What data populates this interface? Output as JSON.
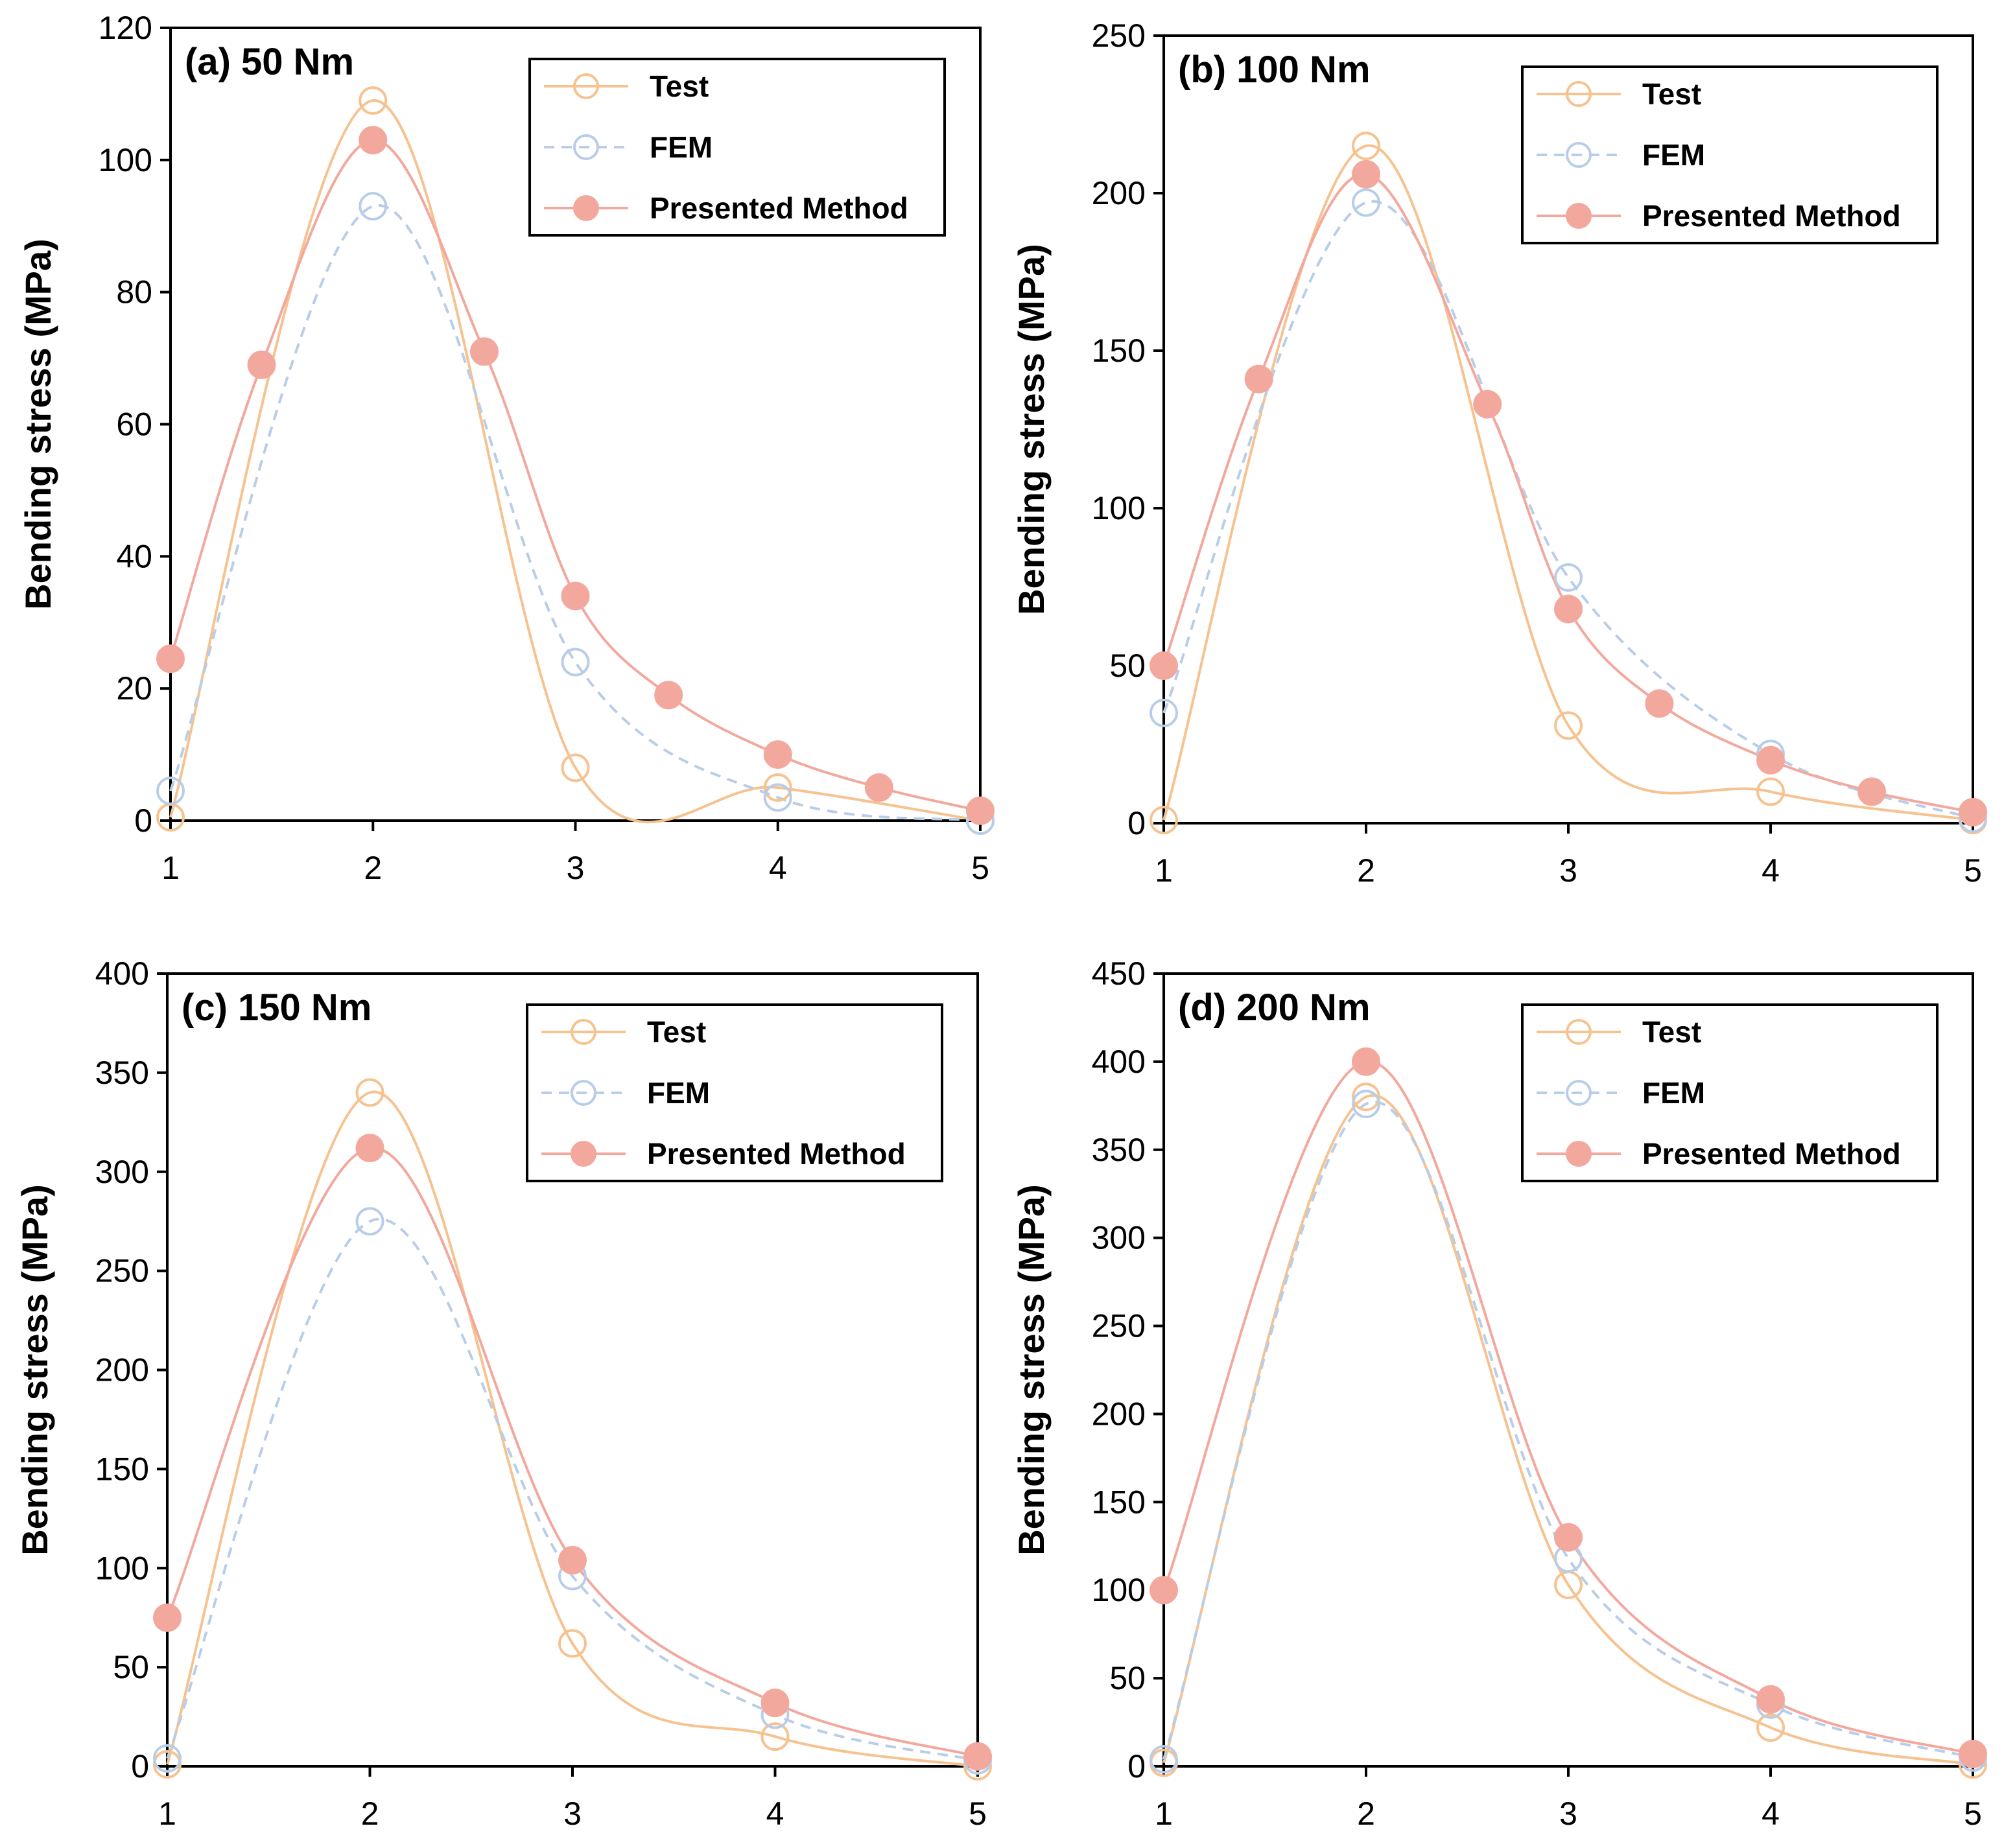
{
  "chart_data": [
    {
      "type": "line",
      "title": "(a) 50 Nm",
      "xlabel": "",
      "ylabel": "Bending stress (MPa)",
      "xlim": [
        1,
        5
      ],
      "ylim": [
        0,
        120
      ],
      "xticks": [
        1,
        2,
        3,
        4,
        5
      ],
      "yticks": [
        0,
        20,
        40,
        60,
        80,
        100,
        120
      ],
      "legend": "top-right",
      "grid": false,
      "series": [
        {
          "name": "Test",
          "color": "#f6c28f",
          "style": "solid",
          "marker": "open-circle",
          "x": [
            1,
            2,
            3,
            4,
            5
          ],
          "y": [
            0.5,
            109,
            8,
            5,
            0
          ]
        },
        {
          "name": "FEM",
          "color": "#b8cde8",
          "style": "dashed",
          "marker": "open-circle",
          "x": [
            1,
            2,
            3,
            4,
            5
          ],
          "y": [
            4.5,
            93,
            24,
            3.5,
            0
          ]
        },
        {
          "name": "Presented Method",
          "color": "#f3a89d",
          "style": "solid",
          "marker": "filled-circle",
          "x": [
            1,
            1.45,
            2,
            2.55,
            3,
            3.46,
            4,
            4.5,
            5
          ],
          "y": [
            24.5,
            69,
            103,
            71,
            34,
            19,
            10,
            5,
            1.5
          ]
        }
      ]
    },
    {
      "type": "line",
      "title": "(b) 100 Nm",
      "xlabel": "",
      "ylabel": "Bending stress (MPa)",
      "xlim": [
        1,
        5
      ],
      "ylim": [
        0,
        250
      ],
      "xticks": [
        1,
        2,
        3,
        4,
        5
      ],
      "yticks": [
        0,
        50,
        100,
        150,
        200,
        250
      ],
      "legend": "top-right",
      "grid": false,
      "series": [
        {
          "name": "Test",
          "color": "#f6c28f",
          "style": "solid",
          "marker": "open-circle",
          "x": [
            1,
            2,
            3,
            4,
            5
          ],
          "y": [
            1,
            215,
            31,
            10,
            1
          ]
        },
        {
          "name": "FEM",
          "color": "#b8cde8",
          "style": "dashed",
          "marker": "open-circle",
          "x": [
            1,
            2,
            3,
            4,
            5
          ],
          "y": [
            35,
            197,
            78,
            22,
            1.5
          ]
        },
        {
          "name": "Presented Method",
          "color": "#f3a89d",
          "style": "solid",
          "marker": "filled-circle",
          "x": [
            1,
            1.47,
            2,
            2.6,
            3,
            3.45,
            4,
            4.5,
            5
          ],
          "y": [
            50,
            141,
            206,
            133,
            68,
            38,
            20,
            10,
            3.5
          ]
        }
      ]
    },
    {
      "type": "line",
      "title": "(c) 150 Nm",
      "xlabel": "",
      "ylabel": "Bending stress (MPa)",
      "xlim": [
        1,
        5
      ],
      "ylim": [
        0,
        400
      ],
      "xticks": [
        1,
        2,
        3,
        4,
        5
      ],
      "yticks": [
        0,
        50,
        100,
        150,
        200,
        250,
        300,
        350,
        400
      ],
      "legend": "top-right",
      "grid": false,
      "series": [
        {
          "name": "Test",
          "color": "#f6c28f",
          "style": "solid",
          "marker": "open-circle",
          "x": [
            1,
            2,
            3,
            4,
            5
          ],
          "y": [
            1,
            340,
            62,
            15,
            0
          ]
        },
        {
          "name": "FEM",
          "color": "#b8cde8",
          "style": "dashed",
          "marker": "open-circle",
          "x": [
            1,
            2,
            3,
            4,
            5
          ],
          "y": [
            4,
            275,
            96,
            26,
            3
          ]
        },
        {
          "name": "Presented Method",
          "color": "#f3a89d",
          "style": "solid",
          "marker": "filled-circle",
          "x": [
            1,
            2,
            3,
            4,
            5
          ],
          "y": [
            75,
            312,
            104,
            32,
            5
          ]
        }
      ]
    },
    {
      "type": "line",
      "title": "(d) 200 Nm",
      "xlabel": "",
      "ylabel": "Bending stress (MPa)",
      "xlim": [
        1,
        5
      ],
      "ylim": [
        0,
        450
      ],
      "xticks": [
        1,
        2,
        3,
        4,
        5
      ],
      "yticks": [
        0,
        50,
        100,
        150,
        200,
        250,
        300,
        350,
        400,
        450
      ],
      "legend": "top-right",
      "grid": false,
      "series": [
        {
          "name": "Test",
          "color": "#f6c28f",
          "style": "solid",
          "marker": "open-circle",
          "x": [
            1,
            2,
            3,
            4,
            5
          ],
          "y": [
            2,
            380,
            103,
            22,
            1
          ]
        },
        {
          "name": "FEM",
          "color": "#b8cde8",
          "style": "dashed",
          "marker": "open-circle",
          "x": [
            1,
            2,
            3,
            4,
            5
          ],
          "y": [
            4,
            376,
            118,
            35,
            5
          ]
        },
        {
          "name": "Presented Method",
          "color": "#f3a89d",
          "style": "solid",
          "marker": "filled-circle",
          "x": [
            1,
            2,
            3,
            4,
            5
          ],
          "y": [
            100,
            400,
            130,
            38,
            7
          ]
        }
      ]
    }
  ]
}
